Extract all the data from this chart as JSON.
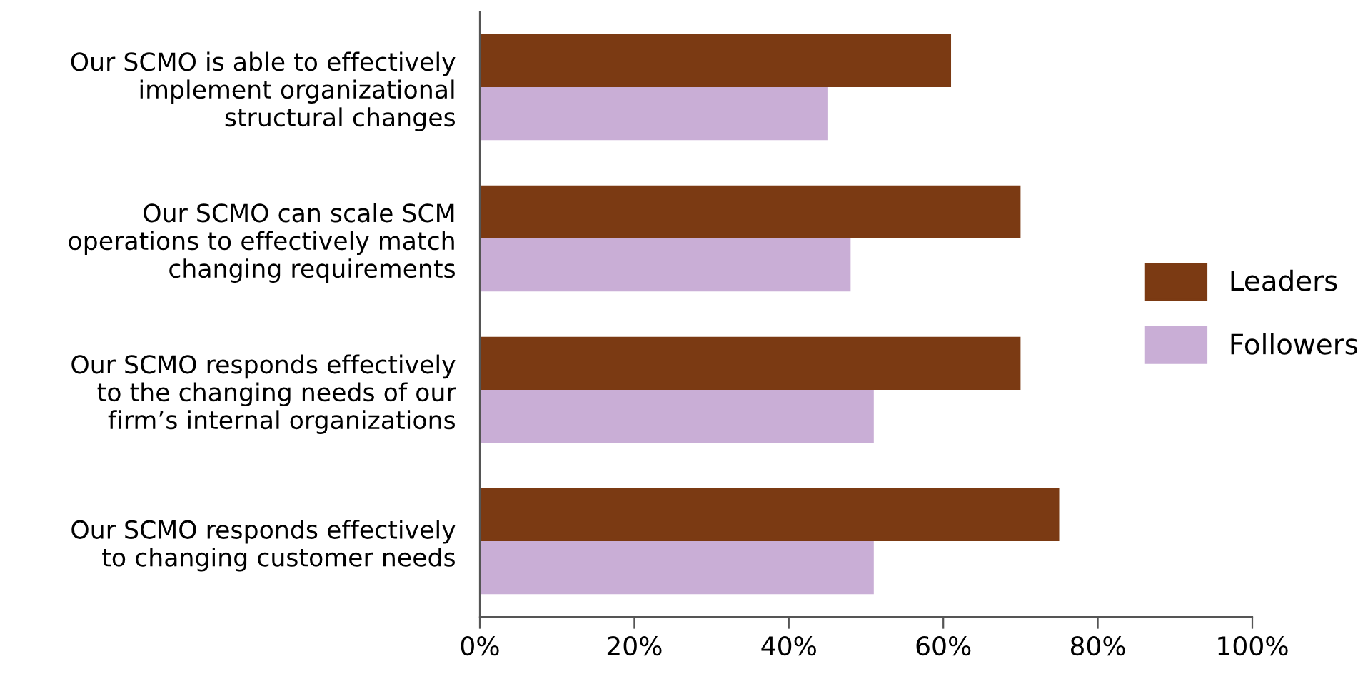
{
  "chart_data": {
    "type": "bar",
    "orientation": "horizontal",
    "categories": [
      "Our SCMO is able to effectively\nimplement organizational\nstructural changes",
      "Our SCMO can scale SCM\noperations to effectively match\nchanging requirements",
      "Our SCMO responds effectively\nto the changing needs of our\nfirm’s internal organizations",
      "Our SCMO responds effectively\nto changing customer needs"
    ],
    "series": [
      {
        "name": "Leaders",
        "color": "#7b3a13",
        "values": [
          61,
          70,
          70,
          75
        ]
      },
      {
        "name": "Followers",
        "color": "#c9aed6",
        "values": [
          45,
          48,
          51,
          51
        ]
      }
    ],
    "xlim": [
      0,
      100
    ],
    "xticks": [
      {
        "value": 0,
        "label": "0%"
      },
      {
        "value": 20,
        "label": "20%"
      },
      {
        "value": 40,
        "label": "40%"
      },
      {
        "value": 60,
        "label": "60%"
      },
      {
        "value": 80,
        "label": "80%"
      },
      {
        "value": 100,
        "label": "100%"
      }
    ],
    "grid": false,
    "legend": "right"
  }
}
